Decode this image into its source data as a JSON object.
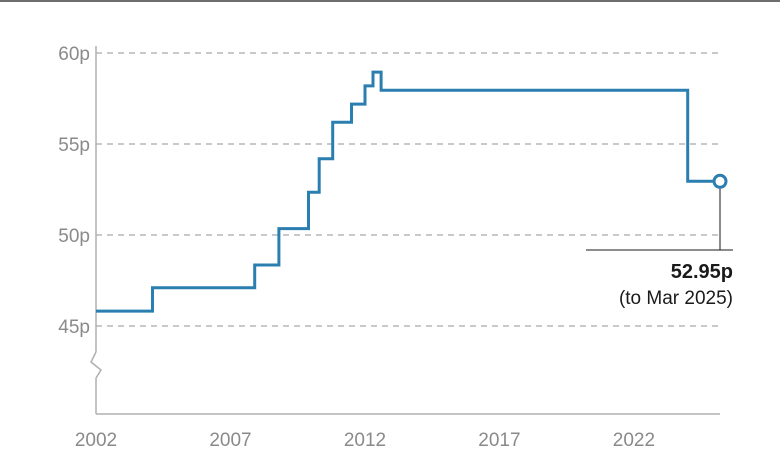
{
  "chart_data": {
    "type": "line",
    "step": true,
    "title": "",
    "xlabel": "",
    "ylabel": "",
    "x_ticks": [
      2002,
      2007,
      2012,
      2017,
      2022
    ],
    "y_ticks": [
      45,
      50,
      55,
      60
    ],
    "y_tick_labels": [
      "45p",
      "50p",
      "55p",
      "60p"
    ],
    "xlim": [
      2002,
      2025.2
    ],
    "ylim": [
      45,
      60
    ],
    "y_axis_break": true,
    "grid": "horizontal dashed",
    "line_color": "#2a7fb0",
    "series": [
      {
        "points": [
          [
            2002.0,
            45.82
          ],
          [
            2004.1,
            45.82
          ],
          [
            2004.1,
            47.1
          ],
          [
            2007.9,
            47.1
          ],
          [
            2007.9,
            48.35
          ],
          [
            2008.8,
            48.35
          ],
          [
            2008.8,
            50.35
          ],
          [
            2009.9,
            50.35
          ],
          [
            2009.9,
            52.35
          ],
          [
            2010.3,
            52.35
          ],
          [
            2010.3,
            54.19
          ],
          [
            2010.8,
            54.19
          ],
          [
            2010.8,
            56.19
          ],
          [
            2011.5,
            56.19
          ],
          [
            2011.5,
            57.19
          ],
          [
            2012.0,
            57.19
          ],
          [
            2012.0,
            58.19
          ],
          [
            2012.3,
            58.19
          ],
          [
            2012.3,
            58.95
          ],
          [
            2012.6,
            58.95
          ],
          [
            2012.6,
            57.95
          ],
          [
            2024.0,
            57.95
          ],
          [
            2024.0,
            52.95
          ],
          [
            2025.2,
            52.95
          ]
        ]
      }
    ],
    "annotation": {
      "value_label": "52.95p",
      "note": "(to Mar 2025)",
      "x": 2025.2,
      "y": 52.95
    }
  }
}
